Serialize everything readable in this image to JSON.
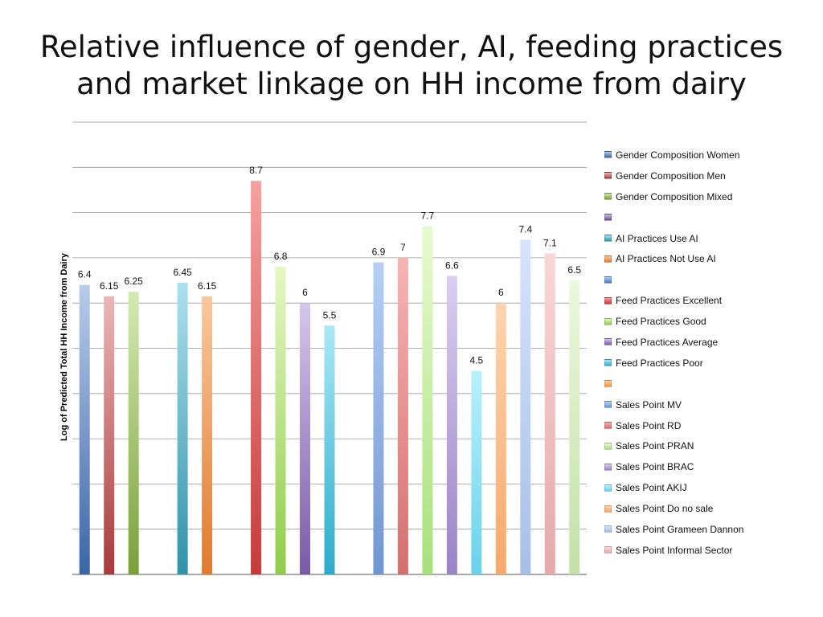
{
  "title_lines": [
    "Relative influence of gender, AI, feeding practices",
    "and market linkage on HH income from dairy"
  ],
  "chart_data": {
    "type": "bar",
    "title": "Relative influence of gender, AI, feeding practices and market linkage on HH income from dairy",
    "xlabel": "",
    "ylabel": "Log of Predicted Total HH Income from Dairy",
    "ylim": [
      0,
      10
    ],
    "grid": true,
    "legend_position": "right",
    "series": [
      {
        "name": "Gender Composition Women",
        "value": 6.4,
        "color": "#3a66a8",
        "light": "#b7cceb"
      },
      {
        "name": "Gender Composition Men",
        "value": 6.15,
        "color": "#a83a3a",
        "light": "#ebb7b7"
      },
      {
        "name": "Gender Composition Mixed",
        "value": 6.25,
        "color": "#78a03a",
        "light": "#d3ebb3"
      },
      {
        "name": "",
        "value": null,
        "color": "#6b4f8f",
        "light": "#cdbde6"
      },
      {
        "name": "AI Practices Use AI",
        "value": 6.45,
        "color": "#2f93a8",
        "light": "#ace0ee"
      },
      {
        "name": "AI Practices Not Use AI",
        "value": 6.15,
        "color": "#e07a2e",
        "light": "#fac79c"
      },
      {
        "name": "",
        "value": null,
        "color": "#3f78c4",
        "light": "#aecdf3"
      },
      {
        "name": "Feed Practices Excellent",
        "value": 8.7,
        "color": "#c83a3a",
        "light": "#f7a0a0"
      },
      {
        "name": "Feed Practices Good",
        "value": 6.8,
        "color": "#90cc4a",
        "light": "#e4f7c4"
      },
      {
        "name": "Feed Practices Average",
        "value": 6.0,
        "color": "#7a5aa6",
        "light": "#d4c6ec"
      },
      {
        "name": "Feed Practices Poor",
        "value": 5.5,
        "color": "#2aaccc",
        "light": "#a9e8f6"
      },
      {
        "name": "",
        "value": null,
        "color": "#f5963a",
        "light": "#fcd0a4"
      },
      {
        "name": "Sales Point MV",
        "value": 6.9,
        "color": "#6f96d0",
        "light": "#b7cff3"
      },
      {
        "name": "Sales Point RD",
        "value": 7.0,
        "color": "#d46f6f",
        "light": "#f7b3b3"
      },
      {
        "name": "Sales Point PRAN",
        "value": 7.7,
        "color": "#a8e07a",
        "light": "#e6fad0"
      },
      {
        "name": "Sales Point BRAC",
        "value": 6.6,
        "color": "#9a82c6",
        "light": "#dccdf2"
      },
      {
        "name": "Sales Point AKIJ",
        "value": 4.5,
        "color": "#6ad2ea",
        "light": "#b8f0fc"
      },
      {
        "name": "Sales Point Do no sale",
        "value": 6.0,
        "color": "#f8a86a",
        "light": "#fdd4b0"
      },
      {
        "name": "Sales Point Grameen Dannon",
        "value": 7.4,
        "color": "#a8bfe6",
        "light": "#d6e3fa"
      },
      {
        "name": "Sales Point Informal Sector",
        "value": 7.1,
        "color": "#e6a8a8",
        "light": "#fad6d6"
      },
      {
        "name": "",
        "value": 6.5,
        "color": "#c4e0a8",
        "light": "#eaf8dc"
      }
    ],
    "data_labels": [
      "6.4",
      "6.15",
      "6.25",
      "",
      "6.45",
      "6.15",
      "",
      "8.7",
      "6.8",
      "6",
      "5.5",
      "",
      "6.9",
      "7",
      "7.7",
      "6.6",
      "4.5",
      "6",
      "7.4",
      "7.1",
      "6.5"
    ]
  }
}
